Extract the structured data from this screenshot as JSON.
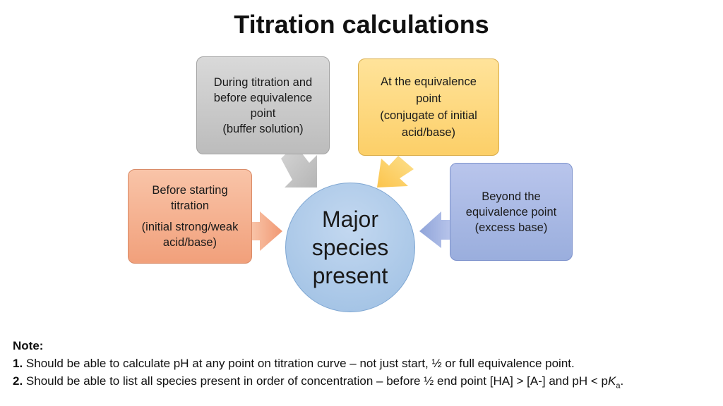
{
  "title": "Titration calculations",
  "center": {
    "lines": [
      "Major",
      "species",
      "present"
    ]
  },
  "boxes": {
    "during": [
      "During titration and",
      "before equivalence",
      "point",
      "(buffer solution)"
    ],
    "equivalence": [
      "At the equivalence",
      "point",
      "(conjugate of initial",
      "acid/base)"
    ],
    "before": [
      "Before starting",
      "titration",
      "(initial strong/weak",
      "acid/base)"
    ],
    "beyond": [
      "Beyond the",
      "equivalence point",
      "(excess base)"
    ]
  },
  "note": {
    "heading": "Note:",
    "item1_num": "1.",
    "item1_text": "Should be able to calculate pH at any point on titration curve – not just start, ½ or full equivalence point.",
    "item2_num": "2.",
    "item2_text": "Should be able to list all species present in order of concentration – before ½ end point [HA] > [A-] and pH < p",
    "item2_italic": "K",
    "item2_sub": "a",
    "item2_end": "."
  },
  "colors": {
    "gray_box": "#c8c8c8",
    "yellow_box": "#fdd77c",
    "orange_box": "#f4ad8c",
    "blue_box": "#a8b9e3",
    "center_circle": "#a9c8e8"
  }
}
